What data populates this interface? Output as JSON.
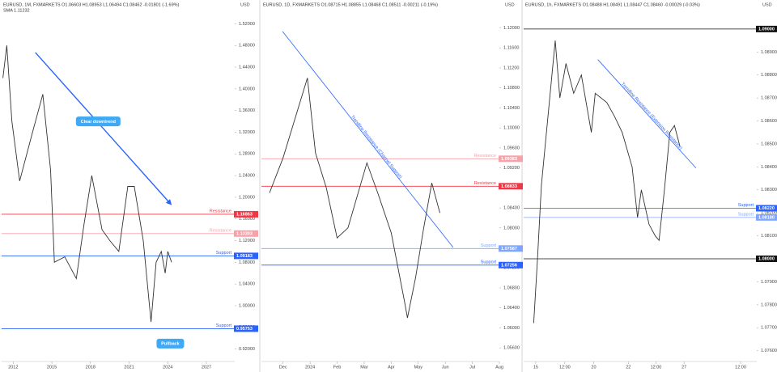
{
  "chart_data": [
    {
      "type": "line",
      "title": "EURUSD, 1M, FXMARKETS O1.06603 H1.08953 L1.06494 C1.08462 -0.01801 (-1.69%)",
      "indicator": "SMA 1.11232",
      "currency": "USD",
      "color": "#333333",
      "x": [
        2011.2,
        2011.5,
        2011.9,
        2012.5,
        2013.5,
        2014.3,
        2014.9,
        2015.2,
        2016.0,
        2016.9,
        2017.5,
        2018.1,
        2018.9,
        2019.5,
        2020.2,
        2020.9,
        2021.4,
        2022.1,
        2022.7,
        2023.1,
        2023.5,
        2023.8,
        2024.0,
        2024.3
      ],
      "values": [
        1.42,
        1.48,
        1.34,
        1.23,
        1.32,
        1.39,
        1.25,
        1.08,
        1.09,
        1.05,
        1.15,
        1.24,
        1.14,
        1.12,
        1.1,
        1.22,
        1.22,
        1.12,
        0.97,
        1.08,
        1.1,
        1.06,
        1.1,
        1.08
      ],
      "xlim": [
        2011.1,
        2029.2
      ],
      "xticks": [
        2012,
        2015,
        2018,
        2021,
        2024,
        2027
      ],
      "ylim": [
        0.9,
        1.54
      ],
      "yticks": [
        {
          "value": 0.92,
          "label": "0.92000"
        },
        {
          "value": 0.96,
          "label": "0.96000"
        },
        {
          "value": 1.0,
          "label": "1.00000"
        },
        {
          "value": 1.04,
          "label": "1.04000"
        },
        {
          "value": 1.08,
          "label": "1.08000"
        },
        {
          "value": 1.12,
          "label": "1.12000"
        },
        {
          "value": 1.16,
          "label": "1.16000"
        },
        {
          "value": 1.2,
          "label": "1.20000"
        },
        {
          "value": 1.24,
          "label": "1.24000"
        },
        {
          "value": 1.28,
          "label": "1.28000"
        },
        {
          "value": 1.32,
          "label": "1.32000"
        },
        {
          "value": 1.36,
          "label": "1.36000"
        },
        {
          "value": 1.4,
          "label": "1.40000"
        },
        {
          "value": 1.44,
          "label": "1.44000"
        },
        {
          "value": 1.48,
          "label": "1.48000"
        },
        {
          "value": 1.52,
          "label": "1.52000"
        }
      ],
      "levels": [
        {
          "name": "Resistance",
          "value": 1.16863,
          "value_label": "1.16863",
          "color": "#f23645"
        },
        {
          "name": "Resistance",
          "value": 1.13303,
          "value_label": "1.13303",
          "color": "#f7a1a8"
        },
        {
          "name": "Support",
          "value": 1.09183,
          "value_label": "1.09183",
          "color": "#2962ff"
        },
        {
          "name": "Support",
          "value": 0.95753,
          "value_label": "0.95753",
          "color": "#2962ff"
        }
      ],
      "trendline": {
        "x": [
          2013.72,
          2024.25
        ],
        "y": [
          1.467,
          1.187
        ],
        "color": "#2962ff",
        "arrow": true
      },
      "annotations": [
        {
          "text": "Clear downtrend",
          "x": 2018.6,
          "y": 1.34
        },
        {
          "text": "Pullback",
          "x": 2024.2,
          "y": 0.93
        }
      ]
    },
    {
      "type": "line",
      "title": "EURUSD, 1D, FXMARKETS O1.08715 H1.08855 L1.08468 C1.08511 -0.00211 (-0.19%)",
      "currency": "USD",
      "color": "#333333",
      "x": [
        -0.5,
        0.0,
        0.9,
        1.2,
        1.6,
        2.0,
        2.4,
        3.1,
        3.5,
        4.0,
        4.5,
        4.6,
        4.9,
        5.2,
        5.5,
        5.8
      ],
      "values": [
        1.087,
        1.094,
        1.11,
        1.095,
        1.088,
        1.078,
        1.08,
        1.093,
        1.087,
        1.079,
        1.065,
        1.062,
        1.07,
        1.08,
        1.089,
        1.083
      ],
      "xlim": [
        -0.8,
        8
      ],
      "xticks": [
        {
          "value": 0,
          "label": "Dec"
        },
        {
          "value": 1,
          "label": "2024"
        },
        {
          "value": 2,
          "label": "Feb"
        },
        {
          "value": 3,
          "label": "Mar"
        },
        {
          "value": 4,
          "label": "Apr"
        },
        {
          "value": 5,
          "label": "May"
        },
        {
          "value": 6,
          "label": "Jun"
        },
        {
          "value": 7,
          "label": "Jul"
        },
        {
          "value": 8,
          "label": "Aug"
        }
      ],
      "ylim": [
        1.0536,
        1.123
      ],
      "yticks": [
        {
          "value": 1.056,
          "label": "1.05600"
        },
        {
          "value": 1.06,
          "label": "1.06000"
        },
        {
          "value": 1.064,
          "label": "1.06400"
        },
        {
          "value": 1.068,
          "label": "1.06800"
        },
        {
          "value": 1.072,
          "label": "1.07200"
        },
        {
          "value": 1.076,
          "label": "1.07600"
        },
        {
          "value": 1.08,
          "label": "1.08000"
        },
        {
          "value": 1.084,
          "label": "1.08400"
        },
        {
          "value": 1.088,
          "label": "1.08800"
        },
        {
          "value": 1.092,
          "label": "1.09200"
        },
        {
          "value": 1.096,
          "label": "1.09600"
        },
        {
          "value": 1.1,
          "label": "1.10000"
        },
        {
          "value": 1.104,
          "label": "1.10400"
        },
        {
          "value": 1.108,
          "label": "1.10800"
        },
        {
          "value": 1.112,
          "label": "1.11200"
        },
        {
          "value": 1.116,
          "label": "1.11600"
        },
        {
          "value": 1.12,
          "label": "1.12000"
        }
      ],
      "levels": [
        {
          "name": "Resistance",
          "value": 1.09383,
          "value_label": "1.09383",
          "color": "#f7a1a8"
        },
        {
          "name": "Resistance",
          "value": 1.08833,
          "value_label": "1.08833",
          "color": "#f23645"
        },
        {
          "name": "Support",
          "value": 1.07587,
          "value_label": "1.07587",
          "color": "#7fa6ff"
        },
        {
          "name": "Support",
          "value": 1.07256,
          "value_label": "1.07256",
          "color": "#2962ff"
        }
      ],
      "trendline": {
        "label": "Trendline Resistance (Channel Support)",
        "x": [
          -0.02,
          6.29
        ],
        "y": [
          1.1193,
          1.0761
        ],
        "color": "#2962ff"
      }
    },
    {
      "type": "line",
      "title": "EURUSD, 1h, FXMARKETS O1.08488 H1.08491 L1.08447 C1.08460 -0.00029 (-0.03%)",
      "currency": "USD",
      "color": "#333333",
      "x": [
        0,
        5,
        10,
        18,
        28,
        34,
        42,
        52,
        62,
        75,
        80,
        95,
        105,
        115,
        128,
        135,
        140,
        150,
        158,
        163,
        170,
        177,
        183,
        190
      ],
      "values": [
        1.0772,
        1.08,
        1.0832,
        1.086,
        1.0895,
        1.087,
        1.0885,
        1.0872,
        1.088,
        1.0855,
        1.0872,
        1.0868,
        1.0862,
        1.0855,
        1.084,
        1.0818,
        1.083,
        1.0815,
        1.081,
        1.0808,
        1.083,
        1.0855,
        1.0858,
        1.0849
      ],
      "xlim": [
        -13,
        290
      ],
      "xticks": [
        {
          "value": 2.7,
          "label": "15"
        },
        {
          "value": 40.5,
          "label": "12:00"
        },
        {
          "value": 78,
          "label": "20"
        },
        {
          "value": 123,
          "label": "22"
        },
        {
          "value": 159,
          "label": "12:00"
        },
        {
          "value": 195.5,
          "label": "27"
        },
        {
          "value": 269,
          "label": "12:00"
        }
      ],
      "ylim": [
        1.0756,
        1.0907
      ],
      "yticks": [
        {
          "value": 1.076,
          "label": "1.07600"
        },
        {
          "value": 1.077,
          "label": "1.07700"
        },
        {
          "value": 1.078,
          "label": "1.07800"
        },
        {
          "value": 1.079,
          "label": "1.07900"
        },
        {
          "value": 1.08,
          "label": "1.08000"
        },
        {
          "value": 1.081,
          "label": "1.08100"
        },
        {
          "value": 1.082,
          "label": "1.08200"
        },
        {
          "value": 1.083,
          "label": "1.08300"
        },
        {
          "value": 1.084,
          "label": "1.08400"
        },
        {
          "value": 1.085,
          "label": "1.08500"
        },
        {
          "value": 1.086,
          "label": "1.08600"
        },
        {
          "value": 1.087,
          "label": "1.08700"
        },
        {
          "value": 1.088,
          "label": "1.08800"
        },
        {
          "value": 1.089,
          "label": "1.08900"
        },
        {
          "value": 1.09,
          "label": "1.09000"
        }
      ],
      "levels": [
        {
          "value": 1.09,
          "value_label": "1.09000",
          "color": "#111111"
        },
        {
          "name": "Support",
          "value": 1.0822,
          "value_label": "1.08220",
          "color": "#2962ff"
        },
        {
          "name": "Support",
          "value": 1.0818,
          "value_label": "1.08180",
          "color": "#7fa6ff"
        },
        {
          "value": 1.08,
          "value_label": "1.08000",
          "color": "#111111"
        }
      ],
      "trendline": {
        "label": "Trendline Resistance (Extension Resistance)",
        "x": [
          83.4,
          211
        ],
        "y": [
          1.08867,
          1.08395
        ],
        "color": "#2962ff"
      }
    }
  ]
}
